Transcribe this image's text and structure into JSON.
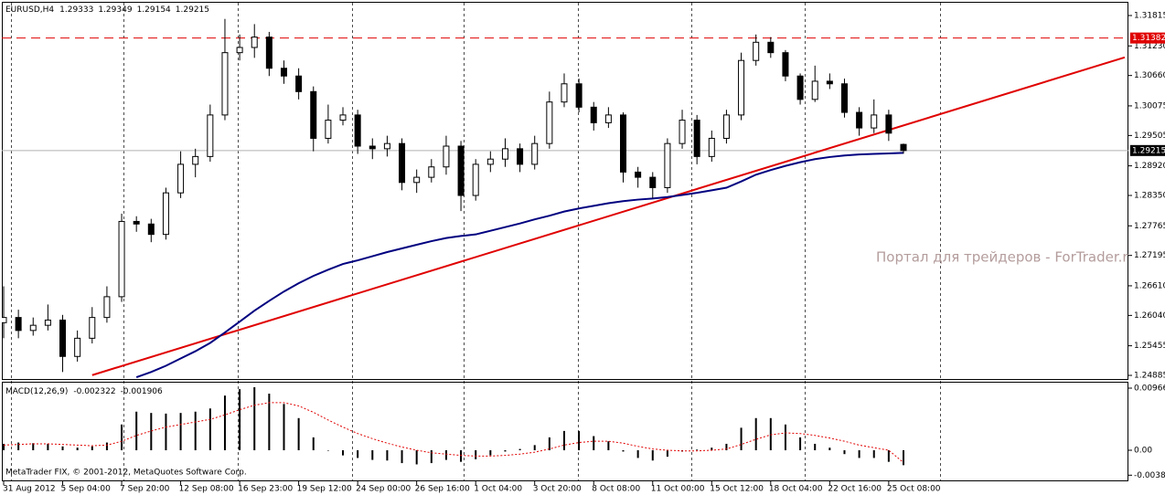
{
  "chart_data": {
    "type": "candlestick",
    "symbol": "EURUSD,H4",
    "categories": [
      "31 Aug 2012",
      null,
      null,
      null,
      "5 Sep 04:00",
      null,
      null,
      null,
      "7 Sep 20:00",
      null,
      null,
      null,
      "12 Sep 08:00",
      null,
      null,
      null,
      "16 Sep 23:00",
      null,
      null,
      null,
      "19 Sep 12:00",
      null,
      null,
      null,
      "24 Sep 00:00",
      null,
      null,
      null,
      "26 Sep 16:00",
      null,
      null,
      null,
      "1 Oct 04:00",
      null,
      null,
      null,
      "3 Oct 20:00",
      null,
      null,
      null,
      "8 Oct 08:00",
      null,
      null,
      null,
      "11 Oct 00:00",
      null,
      null,
      null,
      "15 Oct 12:00",
      null,
      null,
      null,
      "18 Oct 04:00",
      null,
      null,
      null,
      "22 Oct 16:00",
      null,
      null,
      null,
      "25 Oct 08:00",
      null
    ],
    "open": [
      1.259,
      1.26,
      1.2575,
      1.2585,
      1.2595,
      1.2525,
      1.256,
      1.26,
      1.264,
      1.2785,
      1.278,
      1.276,
      1.284,
      1.2895,
      1.291,
      1.299,
      1.311,
      1.312,
      1.314,
      1.308,
      1.3065,
      1.3035,
      1.2945,
      1.298,
      1.299,
      1.293,
      1.2925,
      1.2935,
      1.286,
      1.287,
      1.289,
      1.293,
      1.2835,
      1.2895,
      1.2905,
      1.2925,
      1.2895,
      1.2935,
      1.3015,
      1.305,
      1.3005,
      1.2975,
      1.299,
      1.288,
      1.287,
      1.285,
      1.2935,
      1.298,
      1.291,
      1.2945,
      1.299,
      1.3095,
      1.313,
      1.311,
      1.3065,
      1.302,
      1.3055,
      1.305,
      1.2995,
      1.2965,
      1.299,
      1.29333
    ],
    "high": [
      1.266,
      1.2615,
      1.26,
      1.2625,
      1.2605,
      1.2575,
      1.262,
      1.266,
      1.28,
      1.2795,
      1.279,
      1.285,
      1.292,
      1.2925,
      1.301,
      1.3175,
      1.3145,
      1.3165,
      1.315,
      1.3095,
      1.308,
      1.3045,
      1.301,
      1.3005,
      1.3,
      1.2945,
      1.295,
      1.2945,
      1.2885,
      1.2905,
      1.295,
      1.294,
      1.2905,
      1.292,
      1.2945,
      1.2935,
      1.295,
      1.3035,
      1.307,
      1.306,
      1.3015,
      1.3005,
      1.2995,
      1.289,
      1.288,
      1.2945,
      1.3,
      1.299,
      1.296,
      1.3,
      1.311,
      1.3145,
      1.314,
      1.3115,
      1.307,
      1.3085,
      1.307,
      1.306,
      1.3005,
      1.302,
      1.3,
      1.29349
    ],
    "low": [
      1.256,
      1.256,
      1.2565,
      1.2575,
      1.2495,
      1.2515,
      1.255,
      1.259,
      1.263,
      1.2765,
      1.2745,
      1.275,
      1.283,
      1.287,
      1.29,
      1.298,
      1.3095,
      1.31,
      1.3065,
      1.305,
      1.302,
      1.292,
      1.2935,
      1.297,
      1.2915,
      1.2905,
      1.291,
      1.2845,
      1.284,
      1.286,
      1.2875,
      1.2805,
      1.2825,
      1.288,
      1.289,
      1.288,
      1.2885,
      1.2925,
      1.3005,
      1.2995,
      1.296,
      1.2965,
      1.286,
      1.285,
      1.283,
      1.284,
      1.2925,
      1.2895,
      1.29,
      1.2935,
      1.298,
      1.3085,
      1.31,
      1.3055,
      1.301,
      1.3015,
      1.304,
      1.2985,
      1.295,
      1.2955,
      1.294,
      1.29154
    ],
    "close": [
      1.26,
      1.2575,
      1.2585,
      1.2595,
      1.2525,
      1.256,
      1.26,
      1.264,
      1.2785,
      1.278,
      1.276,
      1.284,
      1.2895,
      1.291,
      1.299,
      1.311,
      1.312,
      1.314,
      1.308,
      1.3065,
      1.3035,
      1.2945,
      1.298,
      1.299,
      1.293,
      1.2925,
      1.2935,
      1.286,
      1.287,
      1.289,
      1.293,
      1.2835,
      1.2895,
      1.2905,
      1.2925,
      1.2895,
      1.2935,
      1.3015,
      1.305,
      1.3005,
      1.2975,
      1.299,
      1.288,
      1.287,
      1.285,
      1.2935,
      1.298,
      1.291,
      1.2945,
      1.299,
      1.3095,
      1.313,
      1.311,
      1.3065,
      1.302,
      1.3055,
      1.305,
      1.2995,
      1.2965,
      1.299,
      1.2955,
      1.29215
    ],
    "moving_average": {
      "color": "#000080",
      "values": [
        null,
        null,
        null,
        null,
        null,
        null,
        null,
        null,
        null,
        1.2485,
        1.2495,
        1.2507,
        1.2521,
        1.2535,
        1.2551,
        1.2571,
        1.2592,
        1.2613,
        1.2632,
        1.265,
        1.2666,
        1.268,
        1.2692,
        1.2703,
        1.271,
        1.2718,
        1.2726,
        1.2733,
        1.274,
        1.2747,
        1.2753,
        1.2757,
        1.276,
        1.2767,
        1.2774,
        1.2781,
        1.2789,
        1.2796,
        1.2804,
        1.281,
        1.2815,
        1.282,
        1.2824,
        1.2827,
        1.2829,
        1.2832,
        1.2836,
        1.284,
        1.2845,
        1.285,
        1.2862,
        1.2875,
        1.2884,
        1.2892,
        1.2899,
        1.2905,
        1.2909,
        1.2912,
        1.2914,
        1.2915,
        1.2916,
        1.2917
      ]
    },
    "trendline": {
      "color": "#e00000",
      "x": [
        6,
        76
      ],
      "values": [
        1.2489,
        1.3101
      ]
    },
    "level": {
      "value": 1.31382,
      "color": "#e00000"
    },
    "ylim": [
      1.24815,
      1.32079
    ],
    "yticks": [
      1.31815,
      {
        "value": 1.3123,
        "label": "1.31230"
      },
      {
        "value": 1.3066,
        "label": "1.30660"
      },
      1.30075,
      1.29505,
      {
        "value": 1.2892,
        "label": "1.28920"
      },
      {
        "value": 1.2835,
        "label": "1.28350"
      },
      1.27765,
      1.27195,
      {
        "value": 1.2661,
        "label": "1.26610"
      },
      {
        "value": 1.2604,
        "label": "1.26040"
      },
      1.25455,
      1.24885
    ],
    "macd": {
      "title": "MACD(12,26,9)",
      "histogram": [
        0.001,
        0.0012,
        0.0011,
        0.001,
        0.0006,
        0.0004,
        0.0006,
        0.0012,
        0.004,
        0.006,
        0.0058,
        0.0057,
        0.0058,
        0.006,
        0.0065,
        0.0085,
        0.0095,
        0.0098,
        0.0088,
        0.0072,
        0.005,
        0.002,
        0.0,
        -0.0008,
        -0.0012,
        -0.0015,
        -0.0016,
        -0.002,
        -0.0022,
        -0.002,
        -0.0015,
        -0.0018,
        -0.0014,
        -0.0008,
        -0.0002,
        0.0002,
        0.0008,
        0.002,
        0.003,
        0.003,
        0.0022,
        0.0014,
        -0.0002,
        -0.0012,
        -0.0016,
        -0.001,
        -0.0002,
        0.0001,
        0.0004,
        0.001,
        0.0035,
        0.005,
        0.005,
        0.004,
        0.002,
        0.001,
        0.0004,
        -0.0006,
        -0.0012,
        -0.0012,
        -0.0018,
        -0.002322
      ],
      "signal": {
        "color": "#e00000",
        "values": [
          0.0008,
          0.0009,
          0.001,
          0.001,
          0.0009,
          0.0008,
          0.0007,
          0.0008,
          0.0014,
          0.0023,
          0.003,
          0.0036,
          0.004,
          0.0044,
          0.0048,
          0.0055,
          0.0063,
          0.007,
          0.0074,
          0.0074,
          0.0069,
          0.0059,
          0.0047,
          0.0036,
          0.0026,
          0.0018,
          0.0011,
          0.0005,
          0.0,
          -0.0004,
          -0.0006,
          -0.0008,
          -0.0009,
          -0.0009,
          -0.0008,
          -0.0006,
          -0.0003,
          0.0002,
          0.0008,
          0.0012,
          0.0014,
          0.0014,
          0.0011,
          0.0006,
          0.0002,
          0.0,
          -0.0001,
          -0.0001,
          0.0,
          0.0002,
          0.0009,
          0.0017,
          0.0024,
          0.0027,
          0.0026,
          0.0023,
          0.0019,
          0.0014,
          0.0008,
          0.0004,
          0.0,
          -0.001906
        ]
      },
      "ylim": [
        -0.00483,
        0.01051
      ],
      "yticks": [
        0.00966,
        {
          "value": 0,
          "label": "0.00"
        },
        -0.00388
      ]
    },
    "watermark": "Портал для трейдеров - ForTrader.ru",
    "copyright": "MetaTrader FIX, © 2001-2012, MetaQuotes Software Corp."
  }
}
